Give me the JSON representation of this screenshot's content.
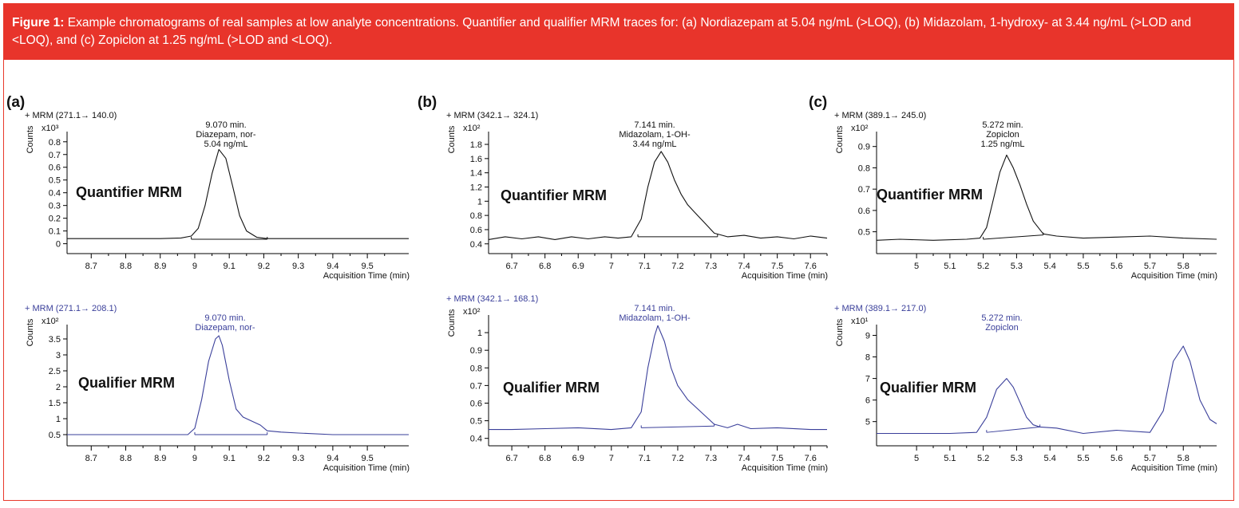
{
  "caption": {
    "label": "Figure 1:",
    "text": "Example chromatograms of real samples at low analyte concentrations. Quantifier and qualifier MRM traces for: (a) Nordiazepam at 5.04 ng/mL (>LOQ), (b) Midazolam, 1-hydroxy- at 3.44 ng/mL (>LOD and <LOQ), and (c) Zopiclon at 1.25 ng/mL (>LOD and <LOQ)."
  },
  "colors": {
    "caption_bg": "#e8342b",
    "quantifier": "#111111",
    "qualifier": "#3a3f9a"
  },
  "chart_data": [
    {
      "type": "line",
      "panel": "(a)",
      "title": "+ MRM (271.1→ 140.0)",
      "ylabel": "Counts",
      "multiplier": "x10³",
      "xlabel": "Acquisition Time (min)",
      "mode_label": "Quantifier MRM",
      "peak_label": [
        "9.070 min.",
        "Diazepam, nor-",
        "5.04 ng/mL"
      ],
      "xlim": [
        8.63,
        9.62
      ],
      "ylim": [
        -0.04,
        0.88
      ],
      "xticks": [
        8.7,
        8.8,
        8.9,
        9,
        9.1,
        9.2,
        9.3,
        9.4,
        9.5
      ],
      "yticks": [
        0,
        0.1,
        0.2,
        0.3,
        0.4,
        0.5,
        0.6,
        0.7,
        0.8
      ],
      "x": [
        8.63,
        8.7,
        8.8,
        8.9,
        8.96,
        8.99,
        9.01,
        9.03,
        9.05,
        9.07,
        9.09,
        9.11,
        9.13,
        9.15,
        9.18,
        9.21,
        9.25,
        9.3,
        9.4,
        9.5,
        9.62
      ],
      "y": [
        0.04,
        0.04,
        0.04,
        0.04,
        0.045,
        0.06,
        0.12,
        0.3,
        0.55,
        0.74,
        0.67,
        0.45,
        0.22,
        0.1,
        0.05,
        0.04,
        0.04,
        0.04,
        0.04,
        0.04,
        0.04
      ],
      "baseline": [
        [
          8.99,
          0.035
        ],
        [
          9.21,
          0.035
        ]
      ]
    },
    {
      "type": "line",
      "panel": "(b)",
      "title": "+ MRM (342.1→ 324.1)",
      "ylabel": "Counts",
      "multiplier": "x10²",
      "xlabel": "Acquisition Time (min)",
      "mode_label": "Quantifier MRM",
      "peak_label": [
        "7.141 min.",
        "Midazolam, 1-OH-",
        "3.44 ng/mL"
      ],
      "xlim": [
        6.63,
        7.65
      ],
      "ylim": [
        0.33,
        1.98
      ],
      "xticks": [
        6.7,
        6.8,
        6.9,
        7,
        7.1,
        7.2,
        7.3,
        7.4,
        7.5,
        7.6
      ],
      "yticks": [
        0.4,
        0.6,
        0.8,
        1,
        1.2,
        1.4,
        1.6,
        1.8
      ],
      "x": [
        6.63,
        6.68,
        6.73,
        6.78,
        6.83,
        6.88,
        6.93,
        6.98,
        7.02,
        7.06,
        7.09,
        7.11,
        7.13,
        7.15,
        7.17,
        7.19,
        7.21,
        7.23,
        7.25,
        7.28,
        7.31,
        7.35,
        7.4,
        7.45,
        7.5,
        7.55,
        7.6,
        7.65
      ],
      "y": [
        0.46,
        0.5,
        0.47,
        0.5,
        0.46,
        0.5,
        0.47,
        0.5,
        0.48,
        0.5,
        0.75,
        1.2,
        1.55,
        1.7,
        1.55,
        1.3,
        1.1,
        0.95,
        0.85,
        0.7,
        0.55,
        0.5,
        0.52,
        0.48,
        0.5,
        0.47,
        0.51,
        0.48
      ],
      "baseline": [
        [
          7.08,
          0.5
        ],
        [
          7.32,
          0.5
        ]
      ]
    },
    {
      "type": "line",
      "panel": "(c)",
      "title": "+ MRM (389.1→ 245.0)",
      "ylabel": "Counts",
      "multiplier": "x10²",
      "xlabel": "Acquisition Time (min)",
      "mode_label": "Quantifier MRM",
      "peak_label": [
        "5.272 min.",
        "Zopiclon",
        "1.25 ng/mL"
      ],
      "xlim": [
        4.88,
        5.9
      ],
      "ylim": [
        0.42,
        0.97
      ],
      "xticks": [
        5,
        5.1,
        5.2,
        5.3,
        5.4,
        5.5,
        5.6,
        5.7,
        5.8
      ],
      "yticks": [
        0.5,
        0.6,
        0.7,
        0.8,
        0.9
      ],
      "x": [
        4.88,
        4.95,
        5.05,
        5.15,
        5.19,
        5.21,
        5.23,
        5.25,
        5.27,
        5.29,
        5.31,
        5.33,
        5.35,
        5.38,
        5.42,
        5.5,
        5.6,
        5.7,
        5.8,
        5.9
      ],
      "y": [
        0.46,
        0.465,
        0.46,
        0.465,
        0.47,
        0.52,
        0.65,
        0.78,
        0.86,
        0.8,
        0.72,
        0.63,
        0.55,
        0.49,
        0.48,
        0.47,
        0.475,
        0.48,
        0.47,
        0.465
      ],
      "baseline": [
        [
          5.2,
          0.465
        ],
        [
          5.38,
          0.485
        ]
      ]
    },
    {
      "type": "line",
      "panel": "(a)",
      "title": "+ MRM (271.1→ 208.1)",
      "ylabel": "Counts",
      "multiplier": "x10²",
      "xlabel": "Acquisition Time (min)",
      "mode_label": "Qualifier MRM",
      "peak_label": [
        "9.070 min.",
        "Diazepam, nor-"
      ],
      "xlim": [
        8.63,
        9.62
      ],
      "ylim": [
        0.3,
        3.95
      ],
      "xticks": [
        8.7,
        8.8,
        8.9,
        9,
        9.1,
        9.2,
        9.3,
        9.4,
        9.5
      ],
      "yticks": [
        0.5,
        1,
        1.5,
        2,
        2.5,
        3,
        3.5
      ],
      "x": [
        8.63,
        8.7,
        8.8,
        8.9,
        8.98,
        9.0,
        9.02,
        9.04,
        9.06,
        9.07,
        9.08,
        9.1,
        9.12,
        9.14,
        9.16,
        9.19,
        9.21,
        9.25,
        9.3,
        9.4,
        9.5,
        9.62
      ],
      "y": [
        0.5,
        0.5,
        0.5,
        0.5,
        0.5,
        0.7,
        1.6,
        2.8,
        3.5,
        3.6,
        3.3,
        2.2,
        1.3,
        1.05,
        0.95,
        0.8,
        0.62,
        0.58,
        0.55,
        0.5,
        0.5,
        0.5
      ],
      "baseline": [
        [
          9.0,
          0.5
        ],
        [
          9.21,
          0.5
        ]
      ]
    },
    {
      "type": "line",
      "panel": "(b)",
      "title": "+ MRM (342.1→ 168.1)",
      "ylabel": "Counts",
      "multiplier": "x10²",
      "xlabel": "Acquisition Time (min)",
      "mode_label": "Qualifier MRM",
      "peak_label": [
        "7.141 min.",
        "Midazolam, 1-OH-"
      ],
      "xlim": [
        6.63,
        7.65
      ],
      "ylim": [
        0.385,
        1.1
      ],
      "xticks": [
        6.7,
        6.8,
        6.9,
        7,
        7.1,
        7.2,
        7.3,
        7.4,
        7.5,
        7.6
      ],
      "yticks": [
        0.4,
        0.5,
        0.6,
        0.7,
        0.8,
        0.9,
        1
      ],
      "x": [
        6.63,
        6.7,
        6.8,
        6.9,
        7.0,
        7.06,
        7.09,
        7.11,
        7.13,
        7.14,
        7.16,
        7.18,
        7.2,
        7.23,
        7.27,
        7.31,
        7.35,
        7.38,
        7.42,
        7.5,
        7.6,
        7.65
      ],
      "y": [
        0.45,
        0.45,
        0.455,
        0.46,
        0.45,
        0.46,
        0.55,
        0.8,
        0.98,
        1.04,
        0.95,
        0.8,
        0.7,
        0.62,
        0.55,
        0.48,
        0.46,
        0.48,
        0.455,
        0.46,
        0.45,
        0.45
      ],
      "baseline": [
        [
          7.09,
          0.46
        ],
        [
          7.31,
          0.47
        ]
      ]
    },
    {
      "type": "line",
      "panel": "(c)",
      "title": "+ MRM (389.1→ 217.0)",
      "ylabel": "Counts",
      "multiplier": "x10¹",
      "xlabel": "Acquisition Time (min)",
      "mode_label": "Qualifier MRM",
      "peak_label": [
        "5.272 min.",
        "Zopiclon"
      ],
      "xlim": [
        4.88,
        5.9
      ],
      "ylim": [
        4.1,
        9.5
      ],
      "xticks": [
        5,
        5.1,
        5.2,
        5.3,
        5.4,
        5.5,
        5.6,
        5.7,
        5.8
      ],
      "yticks": [
        5,
        6,
        7,
        8,
        9
      ],
      "x": [
        4.88,
        5.0,
        5.1,
        5.18,
        5.21,
        5.24,
        5.27,
        5.29,
        5.31,
        5.33,
        5.35,
        5.37,
        5.42,
        5.5,
        5.6,
        5.7,
        5.74,
        5.77,
        5.8,
        5.82,
        5.85,
        5.88,
        5.9
      ],
      "y": [
        4.45,
        4.45,
        4.45,
        4.5,
        5.2,
        6.5,
        7.0,
        6.6,
        5.9,
        5.2,
        4.85,
        4.75,
        4.7,
        4.45,
        4.6,
        4.5,
        5.5,
        7.8,
        8.5,
        7.8,
        6.0,
        5.1,
        4.9
      ],
      "baseline": [
        [
          5.21,
          4.5
        ],
        [
          5.37,
          4.75
        ]
      ]
    }
  ]
}
